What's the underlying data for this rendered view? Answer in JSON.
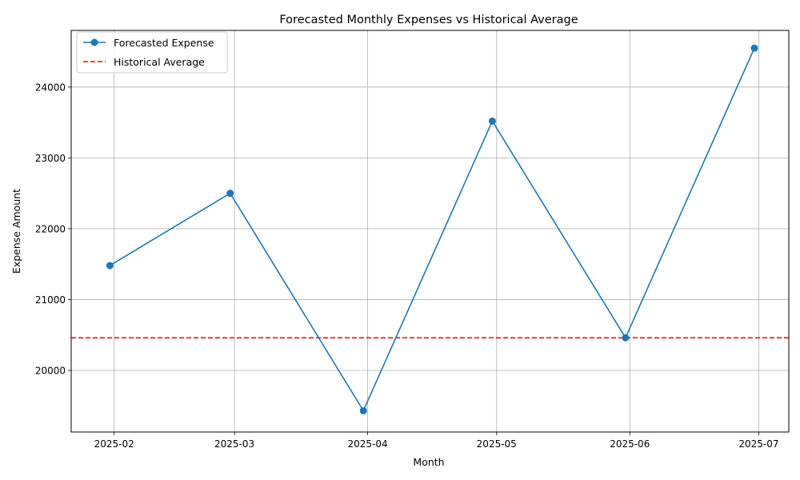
{
  "chart_data": {
    "type": "line",
    "title": "Forecasted Monthly Expenses vs Historical Average",
    "xlabel": "Month",
    "ylabel": "Expense Amount",
    "x": [
      "2025-01-31",
      "2025-02-28",
      "2025-03-31",
      "2025-04-30",
      "2025-05-31",
      "2025-06-30"
    ],
    "xlim": [
      "2025-01-22",
      "2025-07-08"
    ],
    "ylim": [
      19130,
      24800
    ],
    "x_ticks": [
      "2025-02-01",
      "2025-03-01",
      "2025-04-01",
      "2025-05-01",
      "2025-06-01",
      "2025-07-01"
    ],
    "x_tick_labels": [
      "2025-02",
      "2025-03",
      "2025-04",
      "2025-05",
      "2025-06",
      "2025-07"
    ],
    "y_ticks": [
      20000,
      21000,
      22000,
      23000,
      24000
    ],
    "y_tick_labels": [
      "20000",
      "21000",
      "22000",
      "23000",
      "24000"
    ],
    "grid": true,
    "legend_position": "top-left",
    "series": [
      {
        "name": "Forecasted Expense",
        "values": [
          21480,
          22500,
          19430,
          23520,
          20460,
          24550
        ],
        "color": "#1f77b4",
        "style": "solid",
        "marker": "circle"
      },
      {
        "name": "Historical Average",
        "constant": 20460,
        "color": "#ff0000",
        "style": "dashed"
      }
    ]
  }
}
